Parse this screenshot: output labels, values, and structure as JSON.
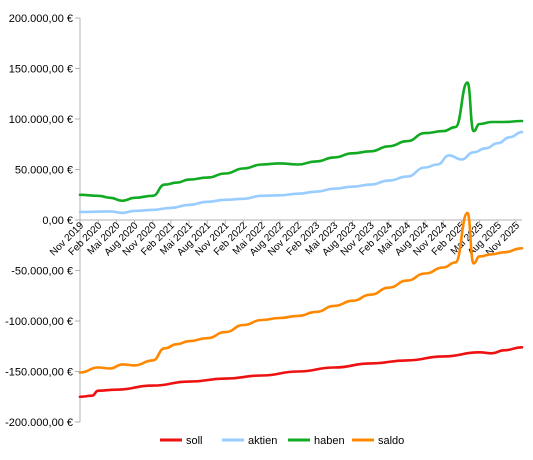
{
  "chart_data": {
    "type": "line",
    "title": "",
    "xlabel": "",
    "ylabel": "",
    "ylim": [
      -200000,
      200000
    ],
    "y_ticks": [
      200000,
      150000,
      100000,
      50000,
      0,
      -50000,
      -100000,
      -150000,
      -200000
    ],
    "y_tick_labels": [
      "200.000,00 €",
      "150.000,00 €",
      "100.000,00 €",
      "50.000,00 €",
      "0,00 €",
      "-50.000,00 €",
      "-100.000,00 €",
      "-150.000,00 €",
      "-200.000,00 €"
    ],
    "x_tick_labels": [
      "Nov 2019",
      "Feb 2020",
      "Mai 2020",
      "Aug 2020",
      "Nov 2020",
      "Feb 2021",
      "Mai 2021",
      "Aug 2021",
      "Nov 2021",
      "Feb 2022",
      "Mai 2022",
      "Aug 2022",
      "Nov 2022",
      "Feb 2023",
      "Mai 2023",
      "Aug 2023",
      "Nov 2023",
      "Feb 2024",
      "Mai 2024",
      "Aug 2024",
      "Nov 2024",
      "Feb 2025",
      "Mai 2025",
      "Aug 2025",
      "Nov 2025"
    ],
    "x_range": [
      "2019-11",
      "2025-12"
    ],
    "grid": false,
    "legend_position": "bottom",
    "series": [
      {
        "name": "soll",
        "color": "#ee1111",
        "points": [
          [
            "2019-11",
            -175000
          ],
          [
            "2020-01",
            -174000
          ],
          [
            "2020-02",
            -169000
          ],
          [
            "2020-05",
            -168000
          ],
          [
            "2020-11",
            -164000
          ],
          [
            "2021-05",
            -160000
          ],
          [
            "2021-11",
            -157000
          ],
          [
            "2022-05",
            -154000
          ],
          [
            "2022-11",
            -150000
          ],
          [
            "2023-05",
            -146000
          ],
          [
            "2023-11",
            -142000
          ],
          [
            "2024-05",
            -139000
          ],
          [
            "2024-11",
            -135000
          ],
          [
            "2025-05",
            -131000
          ],
          [
            "2025-07",
            -132000
          ],
          [
            "2025-09",
            -129000
          ],
          [
            "2025-12",
            -126000
          ]
        ]
      },
      {
        "name": "aktien",
        "color": "#99ccff",
        "points": [
          [
            "2019-11",
            8000
          ],
          [
            "2020-04",
            8500
          ],
          [
            "2020-06",
            7000
          ],
          [
            "2020-08",
            9000
          ],
          [
            "2020-11",
            10000
          ],
          [
            "2021-02",
            12000
          ],
          [
            "2021-05",
            15000
          ],
          [
            "2021-08",
            18000
          ],
          [
            "2021-11",
            20000
          ],
          [
            "2022-02",
            21000
          ],
          [
            "2022-05",
            24000
          ],
          [
            "2022-08",
            24500
          ],
          [
            "2022-11",
            26000
          ],
          [
            "2023-02",
            28000
          ],
          [
            "2023-05",
            31000
          ],
          [
            "2023-08",
            33000
          ],
          [
            "2023-11",
            35000
          ],
          [
            "2024-02",
            39000
          ],
          [
            "2024-05",
            43000
          ],
          [
            "2024-08",
            52000
          ],
          [
            "2024-10",
            55000
          ],
          [
            "2024-12",
            64000
          ],
          [
            "2025-02",
            60000
          ],
          [
            "2025-04",
            67000
          ],
          [
            "2025-06",
            71000
          ],
          [
            "2025-08",
            76000
          ],
          [
            "2025-10",
            82000
          ],
          [
            "2025-12",
            87000
          ]
        ]
      },
      {
        "name": "haben",
        "color": "#11aa22",
        "points": [
          [
            "2019-11",
            25000
          ],
          [
            "2020-02",
            24000
          ],
          [
            "2020-04",
            22000
          ],
          [
            "2020-06",
            19000
          ],
          [
            "2020-08",
            22000
          ],
          [
            "2020-11",
            24000
          ],
          [
            "2021-01",
            35000
          ],
          [
            "2021-03",
            37000
          ],
          [
            "2021-05",
            40000
          ],
          [
            "2021-08",
            42000
          ],
          [
            "2021-11",
            46000
          ],
          [
            "2022-02",
            51000
          ],
          [
            "2022-05",
            55000
          ],
          [
            "2022-08",
            56000
          ],
          [
            "2022-11",
            55000
          ],
          [
            "2023-02",
            58000
          ],
          [
            "2023-05",
            62000
          ],
          [
            "2023-08",
            66000
          ],
          [
            "2023-11",
            68000
          ],
          [
            "2024-02",
            73000
          ],
          [
            "2024-05",
            78000
          ],
          [
            "2024-08",
            86000
          ],
          [
            "2024-11",
            88000
          ],
          [
            "2025-01",
            92000
          ],
          [
            "2025-03",
            136000
          ],
          [
            "2025-04",
            88000
          ],
          [
            "2025-05",
            95000
          ],
          [
            "2025-07",
            97000
          ],
          [
            "2025-09",
            97000
          ],
          [
            "2025-12",
            98000
          ]
        ]
      },
      {
        "name": "saldo",
        "color": "#ff8800",
        "points": [
          [
            "2019-11",
            -151000
          ],
          [
            "2020-02",
            -146000
          ],
          [
            "2020-04",
            -147000
          ],
          [
            "2020-06",
            -143000
          ],
          [
            "2020-08",
            -144000
          ],
          [
            "2020-11",
            -139000
          ],
          [
            "2021-01",
            -127000
          ],
          [
            "2021-03",
            -123000
          ],
          [
            "2021-05",
            -120000
          ],
          [
            "2021-08",
            -117000
          ],
          [
            "2021-11",
            -111000
          ],
          [
            "2022-02",
            -104000
          ],
          [
            "2022-05",
            -99000
          ],
          [
            "2022-08",
            -97000
          ],
          [
            "2022-11",
            -95000
          ],
          [
            "2023-02",
            -91000
          ],
          [
            "2023-05",
            -85000
          ],
          [
            "2023-08",
            -80000
          ],
          [
            "2023-11",
            -74000
          ],
          [
            "2024-02",
            -67000
          ],
          [
            "2024-05",
            -60000
          ],
          [
            "2024-08",
            -53000
          ],
          [
            "2024-11",
            -47000
          ],
          [
            "2025-01",
            -42000
          ],
          [
            "2025-03",
            7000
          ],
          [
            "2025-04",
            -43000
          ],
          [
            "2025-05",
            -36000
          ],
          [
            "2025-07",
            -34000
          ],
          [
            "2025-09",
            -32000
          ],
          [
            "2025-12",
            -28000
          ]
        ]
      }
    ]
  }
}
